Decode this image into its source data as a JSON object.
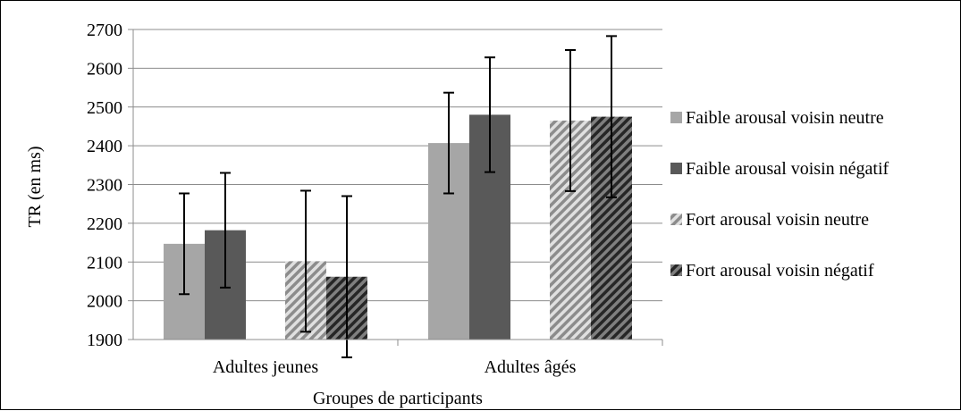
{
  "chart_data": {
    "type": "bar",
    "categories": [
      "Adultes jeunes",
      "Adultes âgés"
    ],
    "series": [
      {
        "name": "Faible arousal voisin neutre",
        "values": [
          2147,
          2407
        ],
        "error": [
          130,
          130
        ],
        "color": "#a6a6a6",
        "pattern": "solid"
      },
      {
        "name": "Faible arousal voisin négatif",
        "values": [
          2182,
          2480
        ],
        "error": [
          148,
          148
        ],
        "color": "#595959",
        "pattern": "solid"
      },
      {
        "name": "Fort arousal voisin neutre",
        "values": [
          2102,
          2465
        ],
        "error": [
          182,
          182
        ],
        "color": "#a6a6a6",
        "pattern": "stripes"
      },
      {
        "name": "Fort arousal voisin négatif",
        "values": [
          2062,
          2475
        ],
        "error": [
          208,
          208
        ],
        "color": "#595959",
        "pattern": "stripes"
      }
    ],
    "ylim": [
      1900,
      2700
    ],
    "yticks": [
      1900,
      2000,
      2100,
      2200,
      2300,
      2400,
      2500,
      2600,
      2700
    ],
    "ytick_labels": [
      "1900",
      "2000",
      "2100",
      "2200",
      "2300",
      "2400",
      "2500",
      "2600",
      "2700"
    ],
    "xlabel": "Groupes de participants",
    "ylabel": "TR (en ms)",
    "grid": true,
    "legend_position": "right"
  }
}
